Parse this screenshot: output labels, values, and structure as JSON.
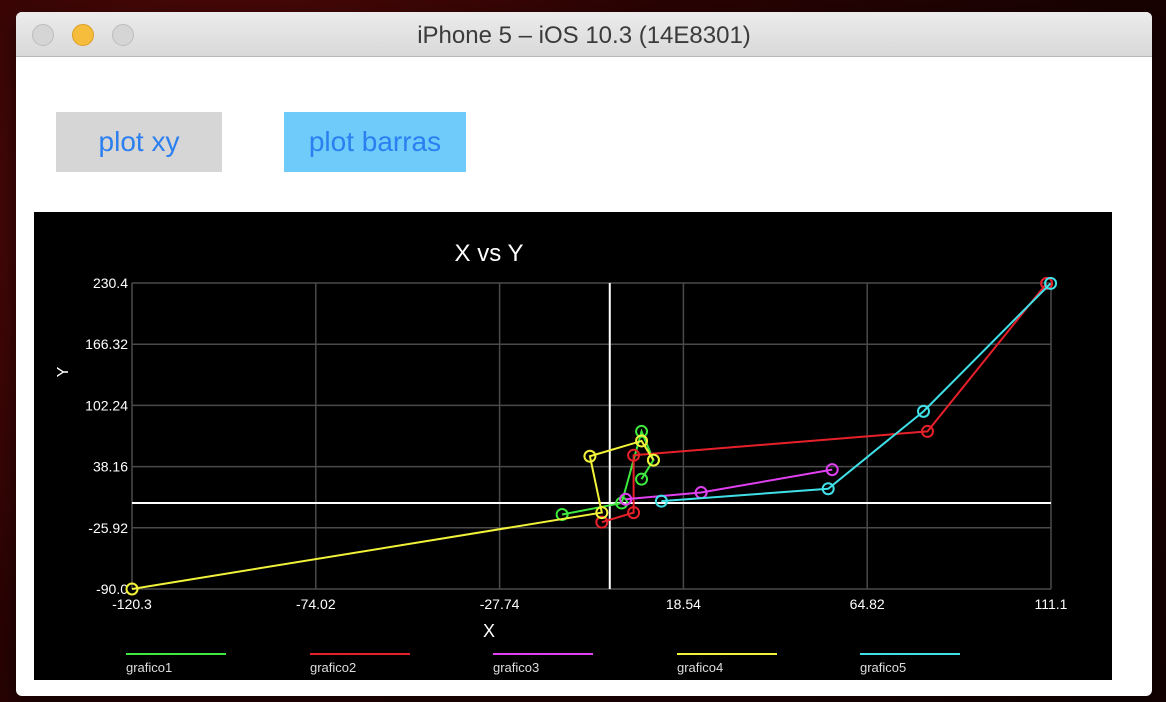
{
  "window": {
    "title": "iPhone 5 – iOS 10.3 (14E8301)"
  },
  "buttons": {
    "plot_xy": "plot xy",
    "plot_barras": "plot barras"
  },
  "colors": {
    "grafico1": "#3ee83e",
    "grafico2": "#e8202a",
    "grafico3": "#e040f0",
    "grafico4": "#f2f23a",
    "grafico5": "#40e0e8",
    "grid": "#4a4a4a",
    "axis": "#ffffff",
    "background": "#000000"
  },
  "chart_data": {
    "type": "line",
    "title": "X vs Y",
    "xlabel": "X",
    "ylabel": "Y",
    "xlim": [
      -120.3,
      111.1
    ],
    "ylim": [
      -90.0,
      230.4
    ],
    "xticks": [
      "-120.3",
      "-74.02",
      "-27.74",
      "18.54",
      "64.82",
      "111.1"
    ],
    "yticks": [
      "-90.0",
      "-25.92",
      "38.16",
      "102.24",
      "166.32",
      "230.4"
    ],
    "grid": true,
    "legend_position": "bottom",
    "series": [
      {
        "name": "grafico1",
        "x": [
          -12,
          3,
          8,
          11,
          8
        ],
        "y": [
          -12,
          0,
          75,
          45,
          25
        ]
      },
      {
        "name": "grafico2",
        "x": [
          -2,
          6,
          6,
          80,
          110
        ],
        "y": [
          -20,
          -10,
          50,
          75,
          230
        ]
      },
      {
        "name": "grafico3",
        "x": [
          4,
          23,
          56
        ],
        "y": [
          4,
          11,
          35
        ]
      },
      {
        "name": "grafico4",
        "x": [
          -120.3,
          -2,
          -5,
          8,
          11
        ],
        "y": [
          -90,
          -10,
          49,
          65,
          45
        ]
      },
      {
        "name": "grafico5",
        "x": [
          13,
          55,
          79,
          111
        ],
        "y": [
          2,
          15,
          96,
          230
        ]
      }
    ]
  }
}
